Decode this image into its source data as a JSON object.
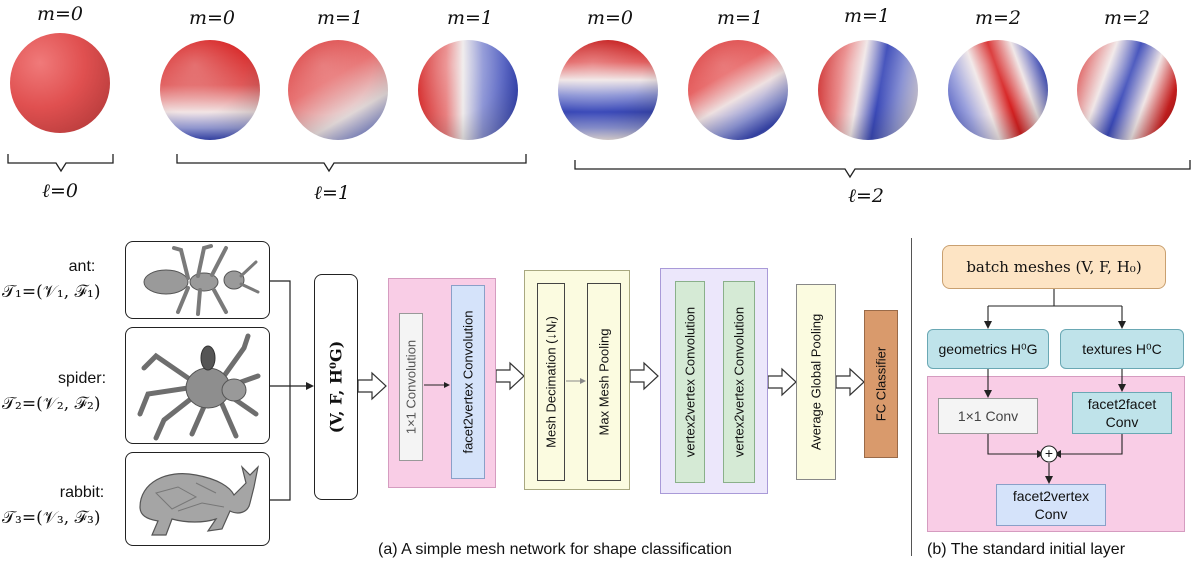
{
  "spheres": {
    "m_labels": [
      "m=0",
      "m=0",
      "m=1",
      "m=1",
      "m=0",
      "m=1",
      "m=1",
      "m=2",
      "m=2"
    ],
    "l_labels": [
      "ℓ=0",
      "ℓ=1",
      "ℓ=2"
    ]
  },
  "shapes": [
    {
      "name": "ant:",
      "math": "𝒯₁=(𝒱₁, ℱ₁)"
    },
    {
      "name": "spider:",
      "math": "𝒯₂=(𝒱₂, ℱ₂)"
    },
    {
      "name": "rabbit:",
      "math": "𝒯₃=(𝒱₃, ℱ₃)"
    }
  ],
  "network": {
    "input_label": "(V, F, H⁰G)",
    "conv1": "1×1 Convolution",
    "f2v": "facet2vertex Convolution",
    "decimation": "Mesh Decimation (↓Nᵣ)",
    "maxpool": "Max Mesh Pooling",
    "v2v_1": "vertex2vertex Convolution",
    "v2v_2": "vertex2vertex Convolution",
    "avgpool": "Average Global Pooling",
    "fc": "FC Classifier"
  },
  "initial_layer": {
    "batch": "batch meshes (V, F, H₀)",
    "geometrics": "geometrics H⁰G",
    "textures": "textures H⁰C",
    "conv1x1": "1×1 Conv",
    "f2f": "facet2facet Conv",
    "f2v": "facet2vertex Conv",
    "plus": "+"
  },
  "captions": {
    "a": "(a) A simple mesh network for shape classification",
    "b": "(b) The standard initial layer"
  },
  "colors": {
    "pink_bg": "#f9cde6",
    "blue_box": "#d5e3fa",
    "green_box": "#d5ead5",
    "yellow_bg": "#fbfbe0",
    "purple_bg": "#ece7fb",
    "orange_fc": "#d99a6c",
    "orange_batch": "#fde4c4",
    "teal_box": "#bfe3ea",
    "sphere_red": "#d62f2f",
    "sphere_blue": "#3a49b8"
  }
}
